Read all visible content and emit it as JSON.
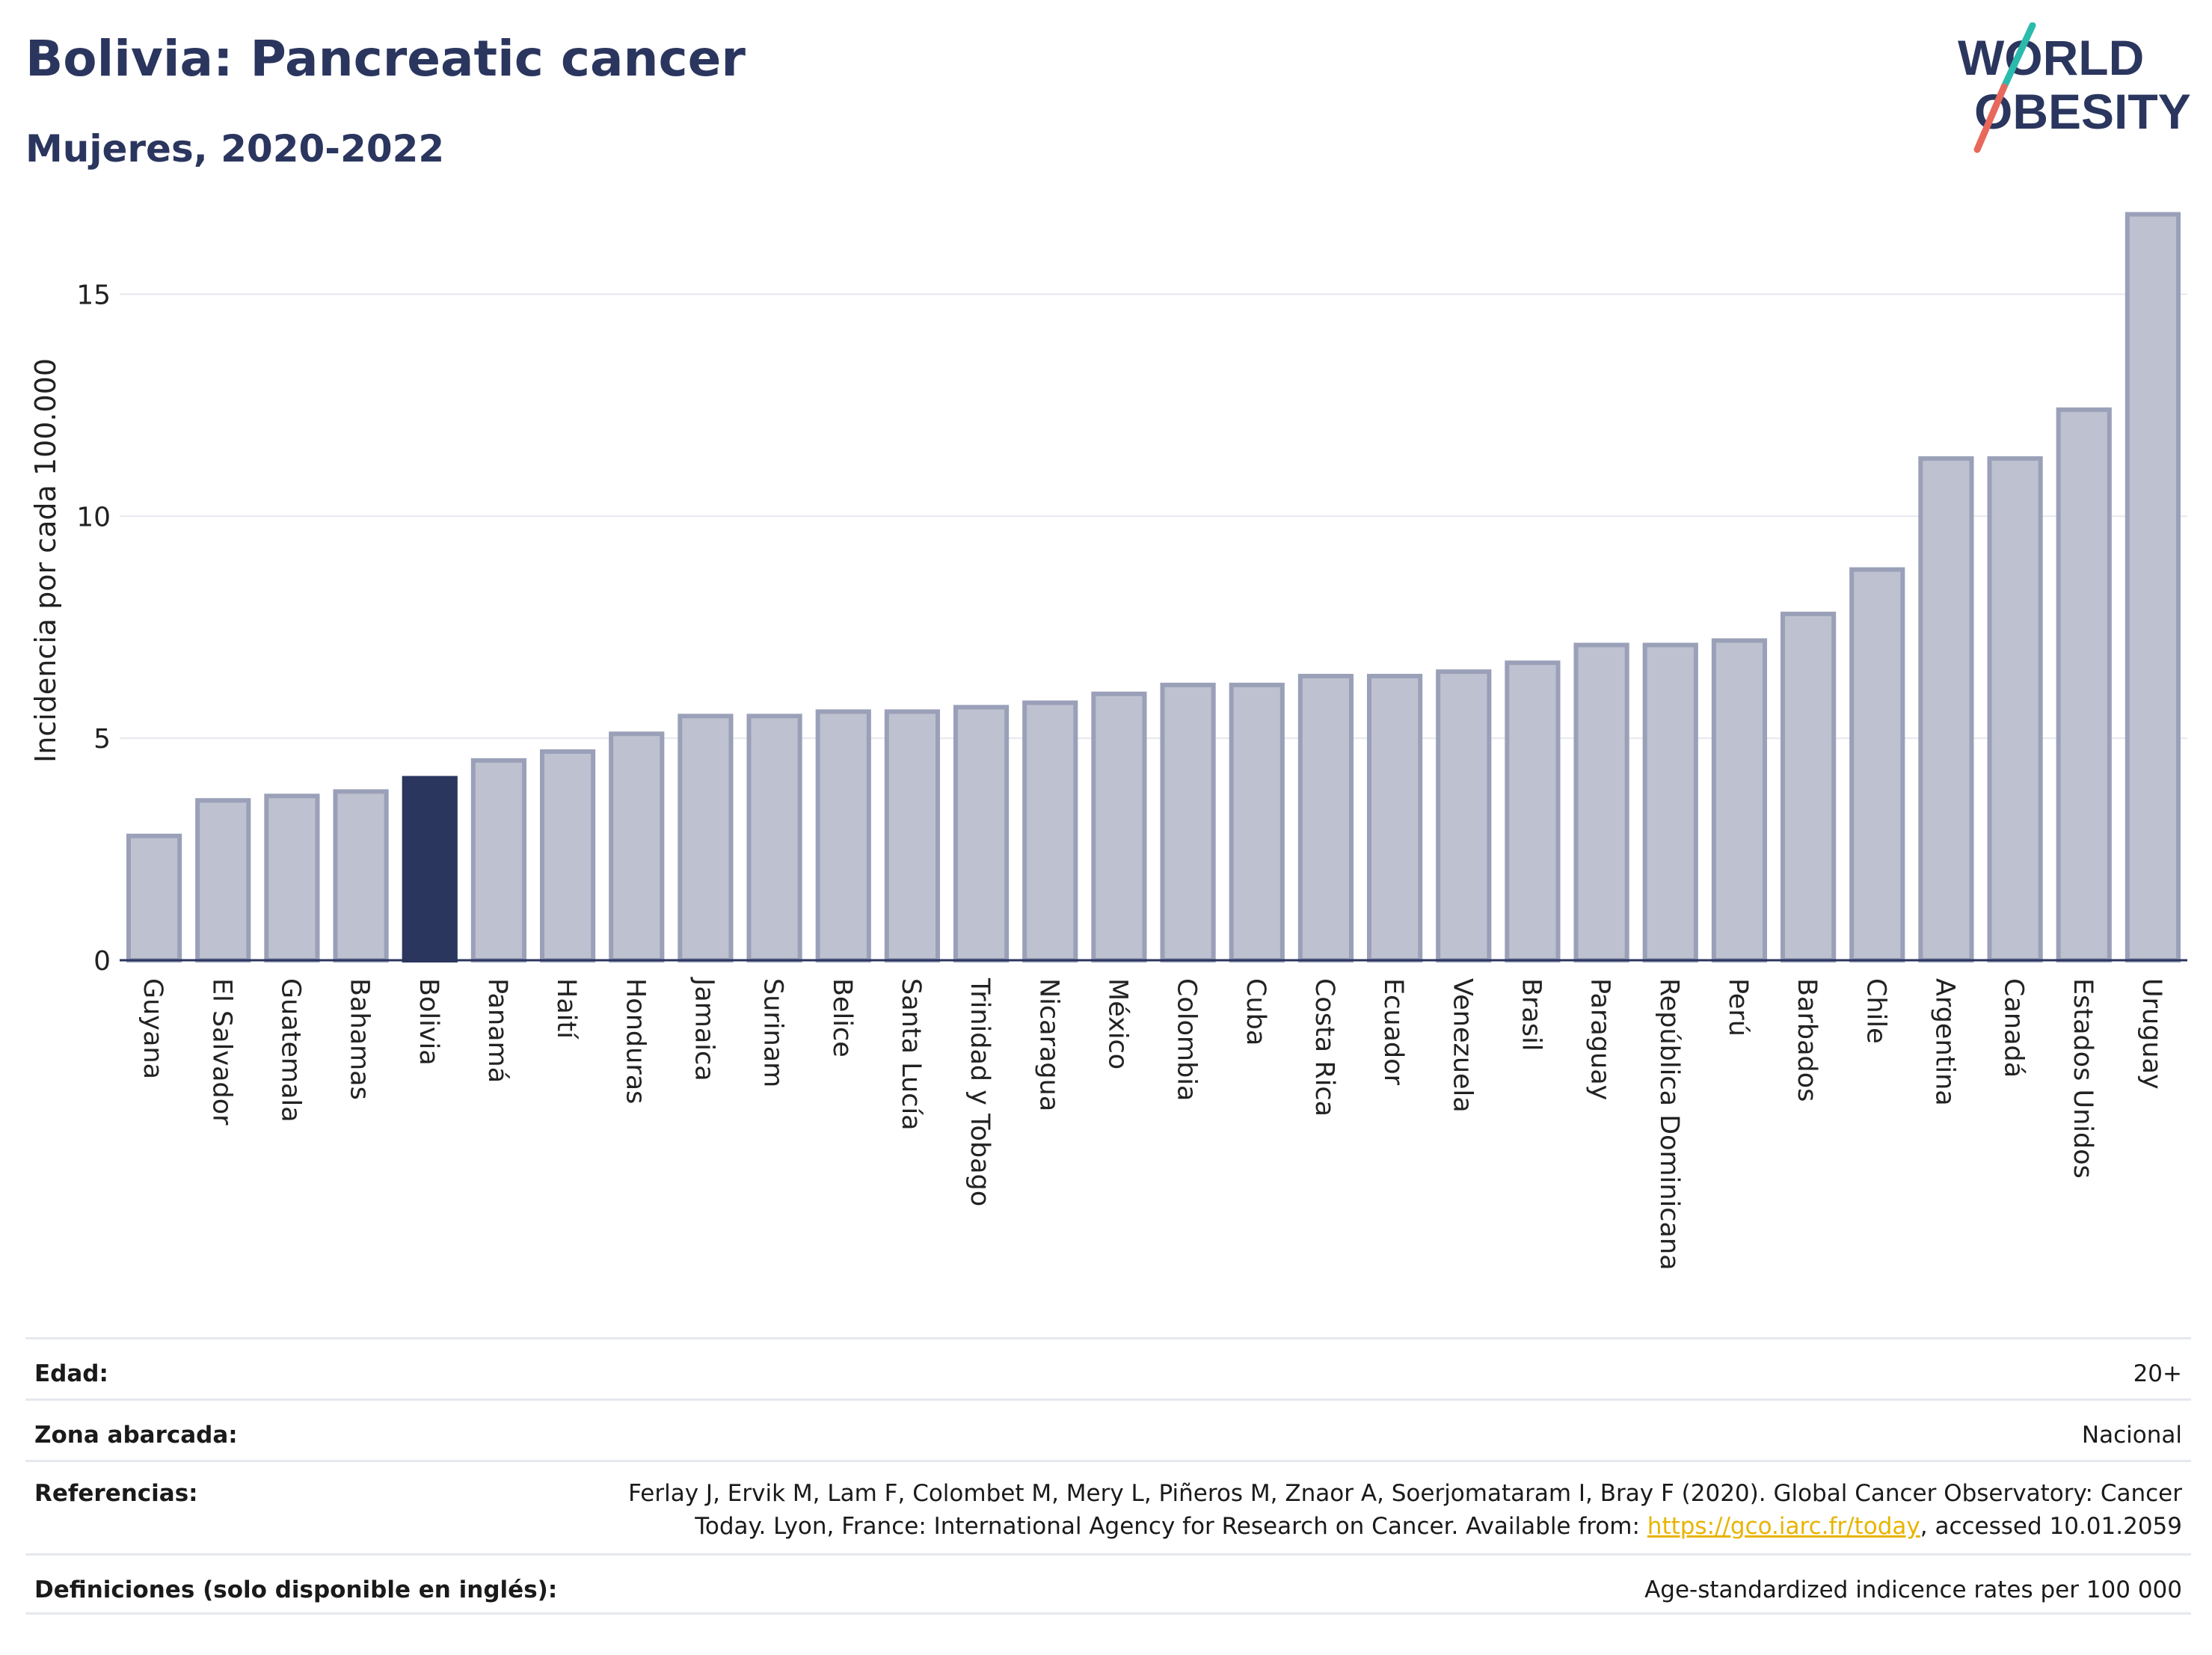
{
  "header": {
    "title": "Bolivia: Pancreatic cancer",
    "subtitle": "Mujeres, 2020-2022"
  },
  "logo": {
    "line1": "WORLD",
    "line2": "OBESITY",
    "colors": {
      "text": "#2b365f",
      "slash_top": "#2bbbad",
      "slash_bottom": "#e8685c"
    }
  },
  "chart_data": {
    "type": "bar",
    "title": "Bolivia: Pancreatic cancer",
    "subtitle": "Mujeres, 2020-2022",
    "ylabel": "Incidencia por cada 100.000",
    "xlabel": "",
    "ylim": [
      0,
      17.5
    ],
    "yticks": [
      0,
      5,
      10,
      15
    ],
    "grid": true,
    "highlight": "Bolivia",
    "colors": {
      "bar": "#bec1cf",
      "bar_border": "#9aa0b8",
      "highlight": "#2b365f",
      "grid": "#e6e8ef",
      "axis": "#2b365f"
    },
    "categories": [
      "Guyana",
      "El Salvador",
      "Guatemala",
      "Bahamas",
      "Bolivia",
      "Panamá",
      "Haití",
      "Honduras",
      "Jamaica",
      "Surinam",
      "Belice",
      "Santa Lucía",
      "Trinidad y Tobago",
      "Nicaragua",
      "México",
      "Colombia",
      "Cuba",
      "Costa Rica",
      "Ecuador",
      "Venezuela",
      "Brasil",
      "Paraguay",
      "República Dominicana",
      "Perú",
      "Barbados",
      "Chile",
      "Argentina",
      "Canadá",
      "Estados Unidos",
      "Uruguay"
    ],
    "values": [
      2.8,
      3.6,
      3.7,
      3.8,
      4.1,
      4.5,
      4.7,
      5.1,
      5.5,
      5.5,
      5.6,
      5.6,
      5.7,
      5.8,
      6.0,
      6.2,
      6.2,
      6.4,
      6.4,
      6.5,
      6.7,
      7.1,
      7.1,
      7.2,
      7.8,
      8.8,
      11.3,
      11.3,
      12.4,
      16.8
    ]
  },
  "footer": {
    "rows": [
      {
        "key": "Edad:",
        "value": "20+"
      },
      {
        "key": "Zona abarcada:",
        "value": "Nacional"
      },
      {
        "key": "Referencias:",
        "value_line1": "Ferlay J, Ervik M, Lam F, Colombet M, Mery L, Piñeros M, Znaor A, Soerjomataram I, Bray F (2020). Global Cancer Observatory: Cancer",
        "value_line2_pre": "Today. Lyon, France: International Agency for Research on Cancer. Available from: ",
        "link": "https://gco.iarc.fr/today",
        "value_line2_post": ", accessed 10.01.2059"
      },
      {
        "key": "Definiciones (solo disponible en inglés):",
        "value": "Age-standardized indicence rates per 100 000"
      }
    ]
  }
}
